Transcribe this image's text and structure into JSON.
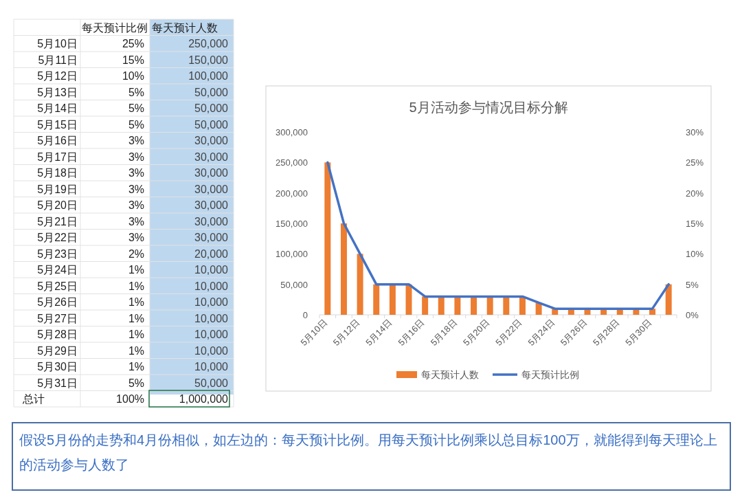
{
  "chart_data": [
    {
      "type": "other",
      "annotations": [
        "每天预计比例",
        "每天预计人数",
        "5月10日",
        "25%",
        "250,000",
        "5月11日",
        "15%",
        "150,000",
        "5月12日",
        "10%",
        "100,000",
        "5月13日",
        "5%",
        "50,000",
        "5月14日",
        "5%",
        "50,000",
        "5月15日",
        "5%",
        "50,000",
        "5月16日",
        "3%",
        "30,000",
        "5月17日",
        "3%",
        "30,000",
        "5月18日",
        "3%",
        "30,000",
        "5月19日",
        "3%",
        "30,000",
        "5月20日",
        "3%",
        "30,000",
        "5月21日",
        "3%",
        "30,000",
        "5月22日",
        "3%",
        "30,000",
        "5月23日",
        "2%",
        "20,000",
        "5月24日",
        "1%",
        "10,000",
        "5月25日",
        "1%",
        "10,000",
        "5月26日",
        "1%",
        "10,000",
        "5月27日",
        "1%",
        "10,000",
        "5月28日",
        "1%",
        "10,000",
        "5月29日",
        "1%",
        "10,000",
        "5月30日",
        "1%",
        "10,000",
        "5月31日",
        "5%",
        "50,000",
        "总计",
        "100%",
        "1,000,000"
      ]
    },
    {
      "type": "bar",
      "title": "5月活动参与情况目标分解",
      "categories": [
        "5月10日",
        null,
        "5月12日",
        null,
        "5月14日",
        null,
        "5月16日",
        null,
        "5月18日",
        null,
        "5月20日",
        null,
        "5月22日",
        null,
        "5月24日",
        null,
        "5月26日",
        null,
        "5月28日",
        null,
        "5月30日",
        null
      ],
      "series": [
        {
          "name": "每天预计人数",
          "type": "bar",
          "color": "#ed7d31",
          "values": [
            250000,
            150000,
            100000,
            50000,
            50000,
            50000,
            30000,
            30000,
            30000,
            30000,
            30000,
            30000,
            30000,
            20000,
            10000,
            10000,
            10000,
            10000,
            10000,
            10000,
            10000,
            50000
          ]
        },
        {
          "name": "每天预计比例",
          "type": "line",
          "axis": "y2",
          "color": "#4472c4",
          "values": [
            25,
            15,
            10,
            5,
            5,
            5,
            3,
            3,
            3,
            3,
            3,
            3,
            3,
            2,
            1,
            1,
            1,
            1,
            1,
            1,
            1,
            5
          ]
        }
      ],
      "ylim": [
        0,
        300000
      ],
      "yticks": [
        0,
        {
          "value": 50000,
          "label": "50,000"
        },
        {
          "value": 100000,
          "label": "100,000"
        },
        {
          "value": 150000,
          "label": "150,000"
        },
        {
          "value": 200000,
          "label": "200,000"
        },
        {
          "value": 250000,
          "label": "250,000"
        },
        {
          "value": 300000,
          "label": "300,000"
        }
      ],
      "y2lim": [
        0,
        30
      ],
      "y2ticks": [
        {
          "value": 0,
          "label": "0%"
        },
        {
          "value": 5,
          "label": "5%"
        },
        {
          "value": 10,
          "label": "10%"
        },
        {
          "value": 15,
          "label": "15%"
        },
        {
          "value": 20,
          "label": "20%"
        },
        {
          "value": 25,
          "label": "25%"
        },
        {
          "value": 30,
          "label": "30%"
        }
      ],
      "legend": "bottom",
      "grid": false,
      "marker": "none",
      "line_style": "solid",
      "annotations": [
        "假设5月份的走势和4月份相似，如左边的：每天预计比例。用每天预计比例乘以总目标100万，就能得到每天理论上的活动参与人数了"
      ]
    }
  ]
}
